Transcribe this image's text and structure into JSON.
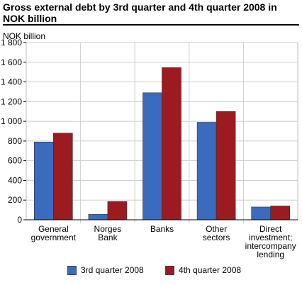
{
  "title": "Gross external debt by 3rd quarter and 4th quarter 2008 in NOK billion",
  "colors": {
    "series1": "#3a6bbf",
    "series2": "#9b1b20",
    "grid": "#cfcfcf",
    "axis": "#000000"
  },
  "chart_data": {
    "type": "bar",
    "title": "Gross external debt by 3rd quarter and 4th quarter 2008 in NOK billion",
    "ylabel": "NOK billion",
    "xlabel": "",
    "ylim": [
      0,
      1800
    ],
    "yticks": [
      0,
      200,
      400,
      600,
      800,
      1000,
      1200,
      1400,
      1600,
      1800
    ],
    "ytick_labels": [
      "0",
      "200",
      "400",
      "600",
      "800",
      "1 000",
      "1 200",
      "1 400",
      "1 600",
      "1 800"
    ],
    "grid": true,
    "legend_position": "bottom",
    "categories": [
      [
        "General",
        "government"
      ],
      [
        "Norges",
        "Bank"
      ],
      [
        "Banks"
      ],
      [
        "Other",
        "sectors"
      ],
      [
        "Direct",
        "investment;",
        "intercompany",
        "lending"
      ]
    ],
    "series": [
      {
        "name": "3rd quarter 2008",
        "values": [
          790,
          55,
          1290,
          990,
          130
        ]
      },
      {
        "name": "4th quarter 2008",
        "values": [
          880,
          185,
          1545,
          1100,
          140
        ]
      }
    ]
  }
}
